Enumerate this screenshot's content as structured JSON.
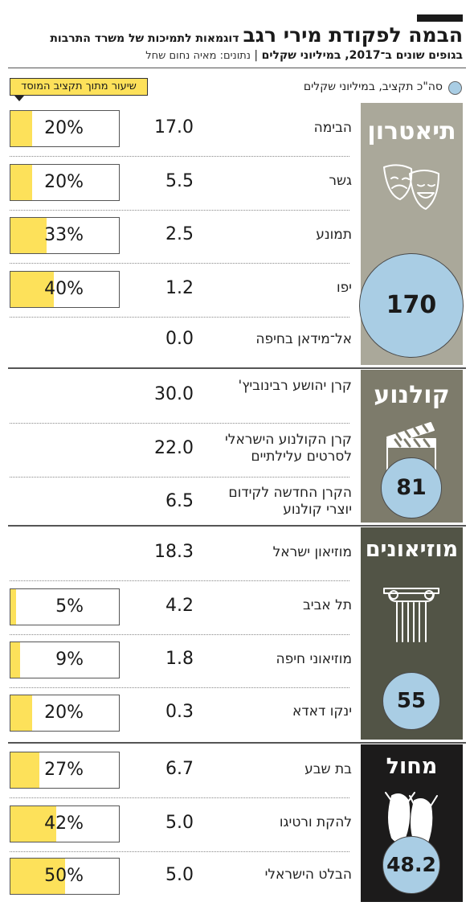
{
  "header": {
    "title_main": "הבמה לפקודת מירי רגב",
    "title_sub": "דוגמאות לתמיכות של משרד התרבות",
    "subtitle_bold": "בגופים שונים ב־2017, במיליוני שקלים",
    "subtitle_source": "נתונים: מאיה נחום שחל"
  },
  "legend": {
    "total_label": "סה\"כ תקציב, במיליוני שקלים",
    "pct_label": "שיעור מתוך תקציב המוסד"
  },
  "chart_data": {
    "type": "table",
    "groups": [
      {
        "name": "תיאטרון",
        "total": "170",
        "color": "#aaa89a",
        "icon": "theater-masks-icon",
        "rows": [
          {
            "label": "הבימה",
            "value": "17.0",
            "pct": 20,
            "pct_label": "20%"
          },
          {
            "label": "גשר",
            "value": "5.5",
            "pct": 20,
            "pct_label": "20%"
          },
          {
            "label": "תמונע",
            "value": "2.5",
            "pct": 33,
            "pct_label": "33%"
          },
          {
            "label": "יפו",
            "value": "1.2",
            "pct": 40,
            "pct_label": "40%"
          },
          {
            "label": "אל־מידאן בחיפה",
            "value": "0.0",
            "pct": null,
            "pct_label": ""
          }
        ]
      },
      {
        "name": "קולנוע",
        "total": "81",
        "color": "#7d7b6b",
        "icon": "clapperboard-icon",
        "rows": [
          {
            "label": "קרן יהושע רבינוביץ'",
            "value": "30.0",
            "pct": null,
            "pct_label": ""
          },
          {
            "label": "קרן הקולנוע הישראלי לסרטים עלילתיים",
            "value": "22.0",
            "pct": null,
            "pct_label": ""
          },
          {
            "label": "הקרן החדשה לקידום יוצרי קולנוע",
            "value": "6.5",
            "pct": null,
            "pct_label": ""
          }
        ]
      },
      {
        "name": "מוזיאונים",
        "total": "55",
        "color": "#525446",
        "icon": "column-icon",
        "rows": [
          {
            "label": "מוזיאון ישראל",
            "value": "18.3",
            "pct": null,
            "pct_label": ""
          },
          {
            "label": "תל אביב",
            "value": "4.2",
            "pct": 5,
            "pct_label": "5%"
          },
          {
            "label": "מוזיאוני חיפה",
            "value": "1.8",
            "pct": 9,
            "pct_label": "9%"
          },
          {
            "label": "ינקו דאדא",
            "value": "0.3",
            "pct": 20,
            "pct_label": "20%"
          }
        ]
      },
      {
        "name": "מחול",
        "total": "48.2",
        "color": "#1c1b1b",
        "icon": "ballet-shoes-icon",
        "rows": [
          {
            "label": "בת שבע",
            "value": "6.7",
            "pct": 27,
            "pct_label": "27%"
          },
          {
            "label": "להקת ורטיגו",
            "value": "5.0",
            "pct": 42,
            "pct_label": "42%"
          },
          {
            "label": "הבלט הישראלי",
            "value": "5.0",
            "pct": 50,
            "pct_label": "50%"
          }
        ]
      }
    ]
  },
  "colors": {
    "bubble": "#a9cde4",
    "pct_fill": "#fde15a"
  }
}
